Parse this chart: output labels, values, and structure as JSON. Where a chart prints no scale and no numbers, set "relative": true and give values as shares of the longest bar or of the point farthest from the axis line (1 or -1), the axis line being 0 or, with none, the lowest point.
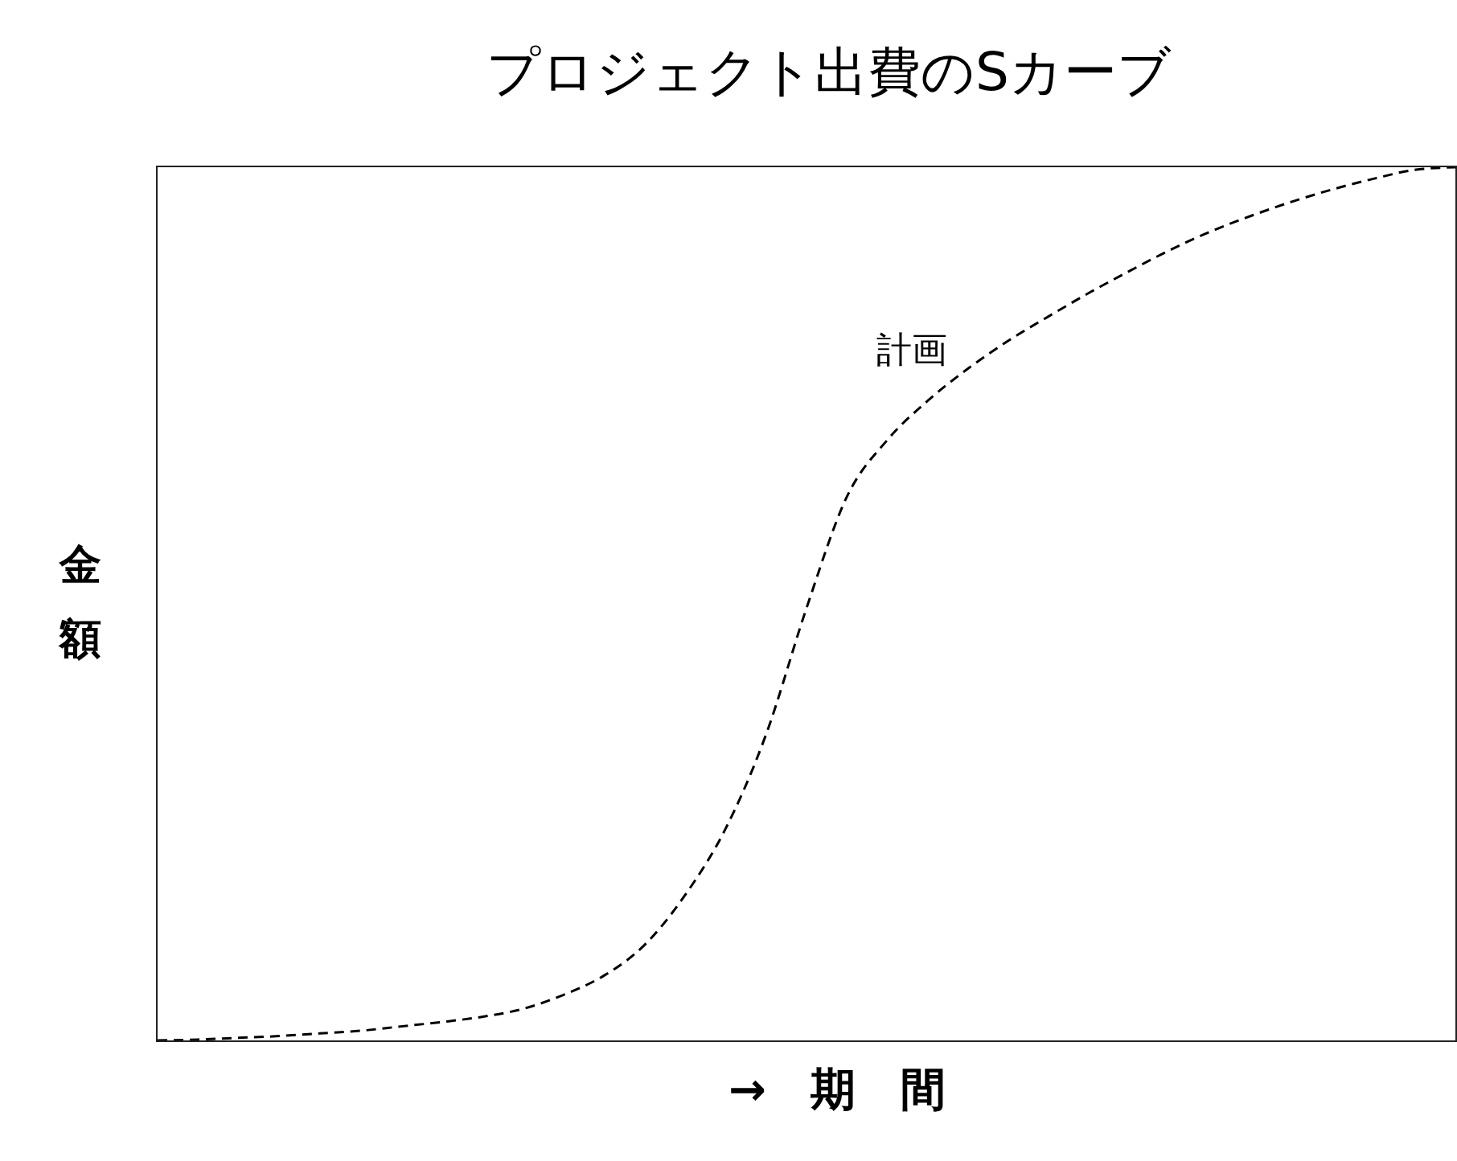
{
  "chart_data": {
    "type": "line",
    "title": "プロジェクト出費のSカーブ",
    "xlabel": "→ 期 間",
    "ylabel": "金額",
    "relative": true,
    "line_style": "dashed",
    "categories": [
      null,
      null,
      null,
      null,
      null,
      null,
      null,
      null,
      null,
      null,
      null,
      null,
      null,
      null,
      null,
      null,
      null,
      null,
      null,
      null,
      null,
      null,
      null,
      null,
      null,
      null,
      null,
      null,
      null,
      null,
      null,
      null,
      null
    ],
    "series": [
      {
        "name": "計画",
        "color": "#000000",
        "values": [
          0,
          0.001,
          0.003,
          0.005,
          0.008,
          0.011,
          0.016,
          0.021,
          0.027,
          0.036,
          0.052,
          0.074,
          0.109,
          0.166,
          0.242,
          0.35,
          0.495,
          0.623,
          0.688,
          0.733,
          0.77,
          0.802,
          0.83,
          0.857,
          0.882,
          0.906,
          0.927,
          0.945,
          0.961,
          0.975,
          0.987,
          0.997,
          1
        ]
      }
    ]
  }
}
